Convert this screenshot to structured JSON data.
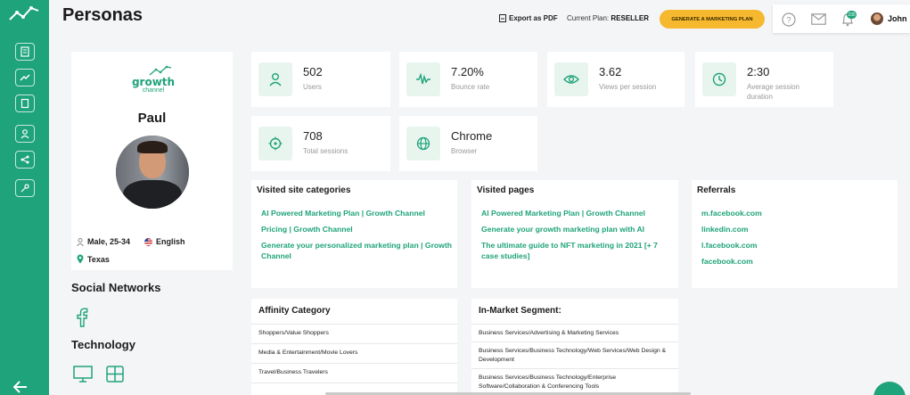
{
  "page": {
    "title": "Personas"
  },
  "header": {
    "export_label": "Export as PDF",
    "plan_prefix": "Current Plan:",
    "plan_value": "RESELLER",
    "cta_label": "GENERATE A MARKETING PLAN",
    "notification_count": "235",
    "user_name": "John"
  },
  "sidebar": {
    "icons": [
      "logo-chart-icon",
      "notes-icon",
      "trend-icon",
      "book-icon",
      "user-icon",
      "share-icon",
      "key-icon",
      "logout-icon"
    ]
  },
  "profile": {
    "brand_line1": "growth",
    "brand_line2": "channel",
    "name": "Paul",
    "gender_age": "Male, 25-34",
    "language": "English",
    "location": "Texas"
  },
  "social": {
    "heading": "Social Networks",
    "icons": [
      "facebook-icon"
    ]
  },
  "technology": {
    "heading": "Technology",
    "icons": [
      "desktop-icon",
      "windows-icon"
    ]
  },
  "stats": [
    {
      "value": "502",
      "label": "Users",
      "icon": "user-icon"
    },
    {
      "value": "7.20%",
      "label": "Bounce rate",
      "icon": "pulse-icon"
    },
    {
      "value": "3.62",
      "label": "Views per session",
      "icon": "eye-icon"
    },
    {
      "value": "2:30",
      "label": "Average session duration",
      "icon": "clock-icon"
    },
    {
      "value": "708",
      "label": "Total sessions",
      "icon": "target-icon"
    },
    {
      "value": "Chrome",
      "label": "Browser",
      "icon": "globe-icon"
    }
  ],
  "visited_categories": {
    "heading": "Visited site categories",
    "items": [
      "AI Powered Marketing Plan | Growth Channel",
      "Pricing | Growth Channel",
      "Generate your personalized marketing plan | Growth Channel"
    ]
  },
  "visited_pages": {
    "heading": "Visited pages",
    "items": [
      "AI Powered Marketing Plan | Growth Channel",
      "Generate your growth marketing plan with AI",
      "The ultimate guide to NFT marketing in 2021 [+ 7 case studies]"
    ]
  },
  "referrals": {
    "heading": "Referrals",
    "items": [
      "m.facebook.com",
      "linkedin.com",
      "l.facebook.com",
      "facebook.com"
    ]
  },
  "affinity": {
    "heading": "Affinity Category",
    "rows": [
      "Shoppers/Value Shoppers",
      "Media & Entertainment/Movie Lovers",
      "Travel/Business Travelers"
    ]
  },
  "in_market": {
    "heading": "In-Market Segment:",
    "rows": [
      "Business Services/Advertising & Marketing Services",
      "Business Services/Business Technology/Web Services/Web Design & Development",
      "Business Services/Business Technology/Enterprise Software/Collaboration & Conferencing Tools"
    ]
  },
  "colors": {
    "accent": "#1fa37a",
    "cta": "#f5b82e",
    "background": "#f4f5f7"
  }
}
